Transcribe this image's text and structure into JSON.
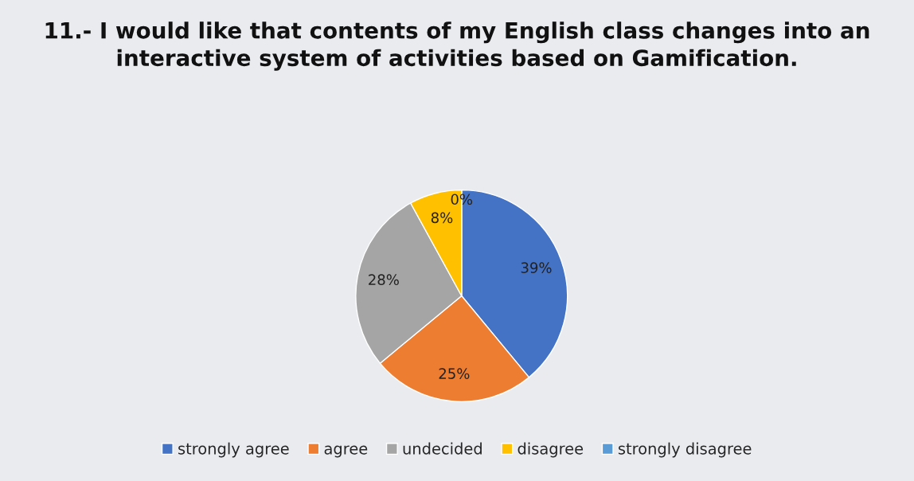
{
  "chart_data": {
    "type": "pie",
    "title": "11.- I would like that contents of my English class changes into an interactive system of activities based on Gamification.",
    "categories": [
      "strongly agree",
      "agree",
      "undecided",
      "disagree",
      "strongly disagree"
    ],
    "values": [
      39,
      25,
      28,
      8,
      0
    ],
    "colors": [
      "#4472c4",
      "#ed7d31",
      "#a5a5a5",
      "#ffc000",
      "#5b9bd5"
    ],
    "value_labels": [
      "39%",
      "25%",
      "28%",
      "8%",
      "0%"
    ],
    "legend": "bottom"
  }
}
